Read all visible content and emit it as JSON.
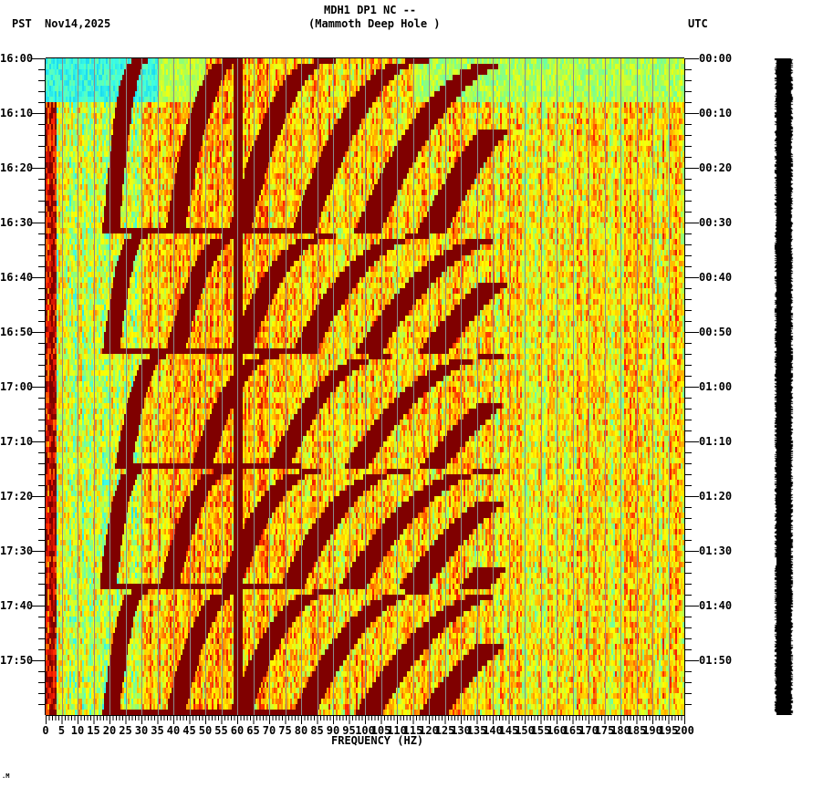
{
  "header": {
    "station_line": "MDH1 DP1 NC --",
    "location_line": "(Mammoth Deep Hole )",
    "left_timezone": "PST",
    "date": "Nov14,2025",
    "right_timezone": "UTC"
  },
  "footer": {
    "mark": ".M"
  },
  "chart_data": {
    "type": "heatmap",
    "title": "MDH1 DP1 NC -- (Mammoth Deep Hole )",
    "subtitle": "PST Nov14,2025",
    "xlabel": "FREQUENCY (HZ)",
    "ylabel_left": "PST",
    "ylabel_right": "UTC",
    "xlim": [
      0,
      200
    ],
    "x_ticks": [
      "0",
      "5",
      "10",
      "15",
      "20",
      "25",
      "30",
      "35",
      "40",
      "45",
      "50",
      "55",
      "60",
      "65",
      "70",
      "75",
      "80",
      "85",
      "90",
      "95",
      "100",
      "105",
      "110",
      "115",
      "120",
      "125",
      "130",
      "135",
      "140",
      "145",
      "150",
      "155",
      "160",
      "165",
      "170",
      "175",
      "180",
      "185",
      "190",
      "195",
      "200"
    ],
    "x_minor_tick_step": 1,
    "y_ticks_left": [
      "16:00",
      "16:10",
      "16:20",
      "16:30",
      "16:40",
      "16:50",
      "17:00",
      "17:10",
      "17:20",
      "17:30",
      "17:40",
      "17:50"
    ],
    "y_ticks_right": [
      "00:00",
      "00:10",
      "00:20",
      "00:30",
      "00:40",
      "00:50",
      "01:00",
      "01:10",
      "01:20",
      "01:30",
      "01:40",
      "01:50"
    ],
    "y_minor_tick_minutes": 2,
    "time_range_minutes": 120,
    "grid": {
      "vertical_every_hz": 5,
      "color": "#8c8c8c"
    },
    "colormap": [
      "#0000ff",
      "#00c0ff",
      "#40ffe0",
      "#a0ff60",
      "#ffff00",
      "#ffa000",
      "#ff2000",
      "#800000"
    ],
    "features": {
      "persistent_line_hz": 60,
      "low_freq_band_hz": [
        0,
        3
      ],
      "quiet_band_minutes": [
        0,
        8
      ],
      "strong_row_minute": 8.5,
      "chirp_sweeps": [
        {
          "start_min": 0,
          "end_min": 32,
          "f0_hz": 20,
          "harmonics": 7
        },
        {
          "start_min": 32,
          "end_min": 54,
          "f0_hz": 20,
          "harmonics": 8
        },
        {
          "start_min": 54,
          "end_min": 75,
          "f0_hz": 24,
          "harmonics": 8
        },
        {
          "start_min": 75,
          "end_min": 97,
          "f0_hz": 19,
          "harmonics": 8
        },
        {
          "start_min": 97,
          "end_min": 120,
          "f0_hz": 20,
          "harmonics": 8
        }
      ]
    },
    "side_trace": {
      "label": "amplitude trace",
      "color": "#000000"
    }
  }
}
